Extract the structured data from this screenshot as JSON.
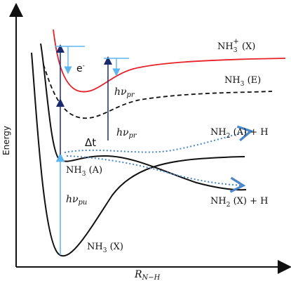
{
  "axes": {
    "y_label": "Energy",
    "x_label_main": "R",
    "x_label_sub": "N−H"
  },
  "states": {
    "ion": {
      "main": "NH",
      "sub": "3",
      "sup": "+",
      "suffix": " (X)"
    },
    "e_state": {
      "main": "NH",
      "sub": "3",
      "suffix": " (E)"
    },
    "a_state": {
      "main": "NH",
      "sub": "3",
      "suffix": " (A)"
    },
    "x_state": {
      "main": "NH",
      "sub": "3",
      "suffix": " (X)"
    },
    "nh2_a": {
      "main": "NH",
      "sub": "2",
      "suffix": " (A) + H"
    },
    "nh2_x": {
      "main": "NH",
      "sub": "2",
      "suffix": " (X) + H"
    }
  },
  "annotations": {
    "electron": "e",
    "electron_sup": "-",
    "delay": "Δt",
    "probe_1": {
      "main": "hν",
      "sub": "pr"
    },
    "probe_2": {
      "main": "hν",
      "sub": "pr"
    },
    "pump": {
      "main": "hν",
      "sub": "pu"
    }
  },
  "colors": {
    "ion_curve": "#e8212b",
    "curves": "#111111",
    "probe_arrow": "#1a2a6c",
    "pump_arrow": "#5fb6ee",
    "electron_arrow": "#5fb6ee",
    "dissociation_path": "#4a86c8"
  }
}
